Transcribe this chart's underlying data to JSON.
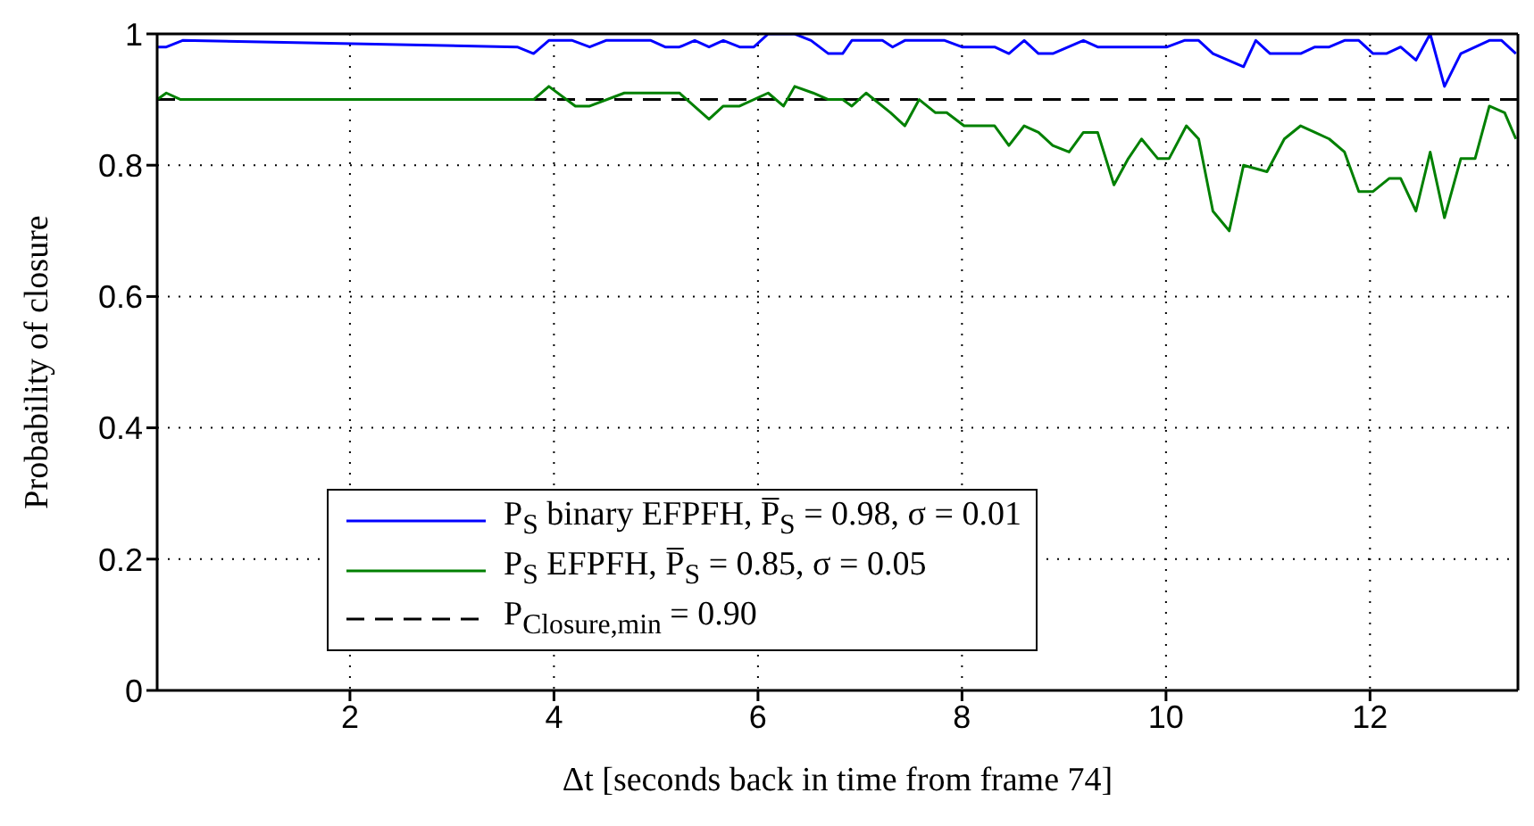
{
  "chart_data": {
    "type": "line",
    "xlabel": "Δt [seconds back in time from frame 74]",
    "ylabel": "Probability of closure",
    "xlim": [
      0.11,
      13.45
    ],
    "xticks": [
      2,
      4,
      6,
      8,
      10,
      12
    ],
    "ylim": [
      0,
      1
    ],
    "yticks": [
      0,
      0.2,
      0.4,
      0.6,
      0.8,
      1
    ],
    "grid": true,
    "legend": "bottom",
    "line_style": "solid",
    "marker": "none",
    "series": [
      {
        "name": "P$_{S}$ binary EFPFH, P̅$_{S}$ = 0.98, σ = 0.01",
        "color": "#0000ff",
        "x": [
          0.11,
          0.2,
          0.36,
          3.64,
          3.8,
          3.95,
          4.18,
          4.35,
          4.51,
          4.95,
          5.09,
          5.23,
          5.38,
          5.52,
          5.66,
          5.82,
          5.96,
          6.1,
          6.36,
          6.52,
          6.69,
          6.83,
          6.92,
          7.22,
          7.32,
          7.44,
          7.83,
          8.0,
          8.32,
          8.46,
          8.61,
          8.75,
          8.89,
          9.19,
          9.33,
          10.01,
          10.18,
          10.32,
          10.46,
          10.76,
          10.88,
          11.02,
          11.32,
          11.46,
          11.6,
          11.75,
          11.89,
          12.03,
          12.16,
          12.3,
          12.45,
          12.59,
          12.73,
          12.89,
          13.17,
          13.29,
          13.43
        ],
        "values": [
          0.98,
          0.98,
          0.99,
          0.98,
          0.97,
          0.99,
          0.99,
          0.98,
          0.99,
          0.99,
          0.98,
          0.98,
          0.99,
          0.98,
          0.99,
          0.98,
          0.98,
          1.0,
          1.0,
          0.99,
          0.97,
          0.97,
          0.99,
          0.99,
          0.98,
          0.99,
          0.99,
          0.98,
          0.98,
          0.97,
          0.99,
          0.97,
          0.97,
          0.99,
          0.98,
          0.98,
          0.99,
          0.99,
          0.97,
          0.95,
          0.99,
          0.97,
          0.97,
          0.98,
          0.98,
          0.99,
          0.99,
          0.97,
          0.97,
          0.98,
          0.96,
          1.0,
          0.92,
          0.97,
          0.99,
          0.99,
          0.97
        ]
      },
      {
        "name": "P$_{S}$ EFPFH, P̅$_{S}$ = 0.85, σ = 0.05",
        "color": "#008000",
        "x": [
          0.11,
          0.2,
          0.34,
          3.64,
          3.8,
          3.95,
          4.21,
          4.35,
          4.69,
          4.79,
          4.95,
          5.09,
          5.23,
          5.52,
          5.66,
          5.82,
          6.1,
          6.25,
          6.36,
          6.54,
          6.69,
          6.83,
          6.92,
          7.06,
          7.3,
          7.44,
          7.58,
          7.74,
          7.85,
          8.02,
          8.18,
          8.32,
          8.46,
          8.61,
          8.75,
          8.89,
          9.05,
          9.19,
          9.33,
          9.49,
          9.63,
          9.76,
          9.92,
          10.03,
          10.2,
          10.32,
          10.46,
          10.62,
          10.76,
          10.99,
          11.16,
          11.32,
          11.46,
          11.6,
          11.75,
          11.89,
          12.03,
          12.19,
          12.3,
          12.45,
          12.59,
          12.73,
          12.89,
          13.03,
          13.17,
          13.32,
          13.43
        ],
        "values": [
          0.9,
          0.91,
          0.9,
          0.9,
          0.9,
          0.92,
          0.89,
          0.89,
          0.91,
          0.91,
          0.91,
          0.91,
          0.91,
          0.87,
          0.89,
          0.89,
          0.91,
          0.89,
          0.92,
          0.91,
          0.9,
          0.9,
          0.89,
          0.91,
          0.88,
          0.86,
          0.9,
          0.88,
          0.88,
          0.86,
          0.86,
          0.86,
          0.83,
          0.86,
          0.85,
          0.83,
          0.82,
          0.85,
          0.85,
          0.77,
          0.81,
          0.84,
          0.81,
          0.81,
          0.86,
          0.84,
          0.73,
          0.7,
          0.8,
          0.79,
          0.84,
          0.86,
          0.85,
          0.84,
          0.82,
          0.76,
          0.76,
          0.78,
          0.78,
          0.73,
          0.82,
          0.72,
          0.81,
          0.81,
          0.89,
          0.88,
          0.84
        ]
      }
    ],
    "ref_lines": [
      {
        "axis": "y",
        "value": 0.9,
        "label": "P$_{Closure,min}$ = 0.90",
        "color": "#000000",
        "line_style": "dashed"
      }
    ]
  }
}
